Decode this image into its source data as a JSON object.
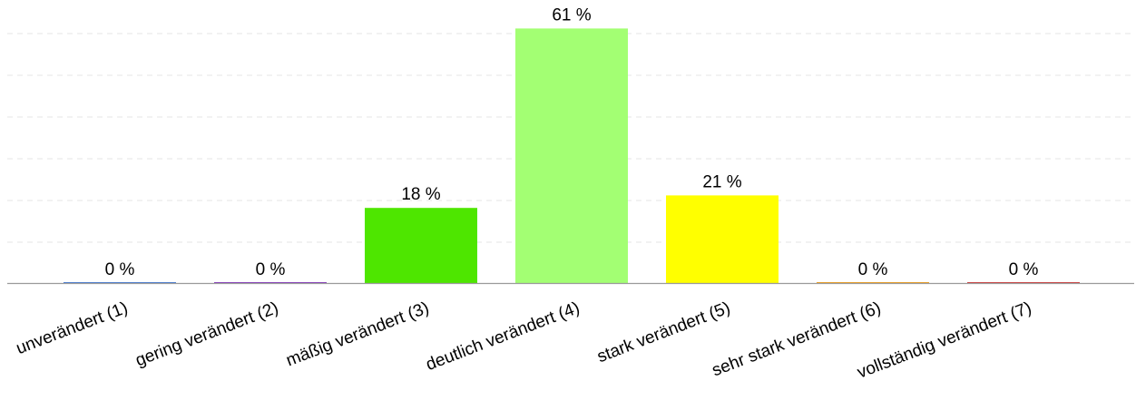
{
  "chart_data": {
    "type": "bar",
    "title": "",
    "xlabel": "",
    "ylabel": "",
    "categories": [
      "unverändert (1)",
      "gering verändert (2)",
      "mäßig verändert (3)",
      "deutlich verändert (4)",
      "stark verändert (5)",
      "sehr stark verändert (6)",
      "vollständig verändert (7)"
    ],
    "values": [
      0,
      0,
      18,
      61,
      21,
      0,
      0
    ],
    "value_labels": [
      "0 %",
      "0 %",
      "18 %",
      "61 %",
      "21 %",
      "0 %",
      "0 %"
    ],
    "colors": [
      "#4a7fd4",
      "#8a3fbf",
      "#4ee600",
      "#a3ff73",
      "#ffff00",
      "#f0a020",
      "#d04040"
    ],
    "ylim": [
      0,
      65
    ],
    "grid": true,
    "legend": "none"
  }
}
